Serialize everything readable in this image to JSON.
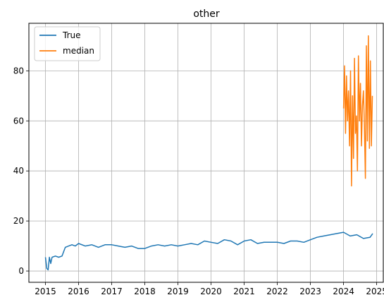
{
  "chart_data": {
    "type": "line",
    "title": "other",
    "xlabel": "",
    "ylabel": "",
    "grid": true,
    "legend_position": "top-left",
    "x_ticks": [
      "2015",
      "2016",
      "2017",
      "2018",
      "2019",
      "2020",
      "2021",
      "2022",
      "2023",
      "2024",
      "2025"
    ],
    "y_ticks": [
      "0",
      "20",
      "40",
      "60",
      "80"
    ],
    "xlim": [
      2014.5,
      2025.2
    ],
    "ylim": [
      -4.5,
      99
    ],
    "series": [
      {
        "name": "True",
        "color": "#1f77b4",
        "x": [
          2015.0,
          2015.04,
          2015.08,
          2015.12,
          2015.16,
          2015.2,
          2015.3,
          2015.4,
          2015.5,
          2015.6,
          2015.7,
          2015.8,
          2015.9,
          2016.0,
          2016.2,
          2016.4,
          2016.6,
          2016.8,
          2017.0,
          2017.2,
          2017.4,
          2017.6,
          2017.8,
          2018.0,
          2018.2,
          2018.4,
          2018.6,
          2018.8,
          2019.0,
          2019.2,
          2019.4,
          2019.6,
          2019.8,
          2020.0,
          2020.2,
          2020.4,
          2020.6,
          2020.8,
          2021.0,
          2021.2,
          2021.4,
          2021.6,
          2021.8,
          2022.0,
          2022.2,
          2022.4,
          2022.6,
          2022.8,
          2023.0,
          2023.2,
          2023.4,
          2023.6,
          2023.8,
          2024.0,
          2024.2,
          2024.4,
          2024.6,
          2024.8,
          2024.88
        ],
        "y": [
          5.5,
          1.0,
          0.5,
          5.5,
          3.0,
          5.5,
          6.0,
          5.5,
          6.0,
          9.5,
          10.0,
          10.5,
          10.0,
          11.0,
          10.0,
          10.5,
          9.5,
          10.5,
          10.5,
          10.0,
          9.5,
          10.0,
          9.0,
          9.0,
          10.0,
          10.5,
          10.0,
          10.5,
          10.0,
          10.5,
          11.0,
          10.5,
          12.0,
          11.5,
          11.0,
          12.5,
          12.0,
          10.5,
          12.0,
          12.5,
          11.0,
          11.5,
          11.5,
          11.5,
          11.0,
          12.0,
          12.0,
          11.5,
          12.5,
          13.5,
          14.0,
          14.5,
          15.0,
          15.5,
          14.0,
          14.5,
          13.0,
          13.5,
          15.0
        ]
      },
      {
        "name": "median",
        "color": "#ff7f0e",
        "x": [
          2024.0,
          2024.03,
          2024.06,
          2024.09,
          2024.12,
          2024.15,
          2024.18,
          2024.21,
          2024.24,
          2024.27,
          2024.3,
          2024.33,
          2024.36,
          2024.39,
          2024.42,
          2024.45,
          2024.48,
          2024.51,
          2024.54,
          2024.57,
          2024.6,
          2024.63,
          2024.66,
          2024.69,
          2024.72,
          2024.75,
          2024.78,
          2024.81,
          2024.84,
          2024.87
        ],
        "y": [
          65,
          82,
          55,
          78,
          60,
          72,
          50,
          80,
          34,
          70,
          45,
          85,
          55,
          62,
          40,
          86,
          60,
          75,
          50,
          66,
          72,
          58,
          37,
          90,
          52,
          94,
          49,
          84,
          50,
          70
        ]
      }
    ]
  },
  "legend": {
    "items": [
      {
        "label": "True",
        "color": "#1f77b4"
      },
      {
        "label": "median",
        "color": "#ff7f0e"
      }
    ]
  }
}
